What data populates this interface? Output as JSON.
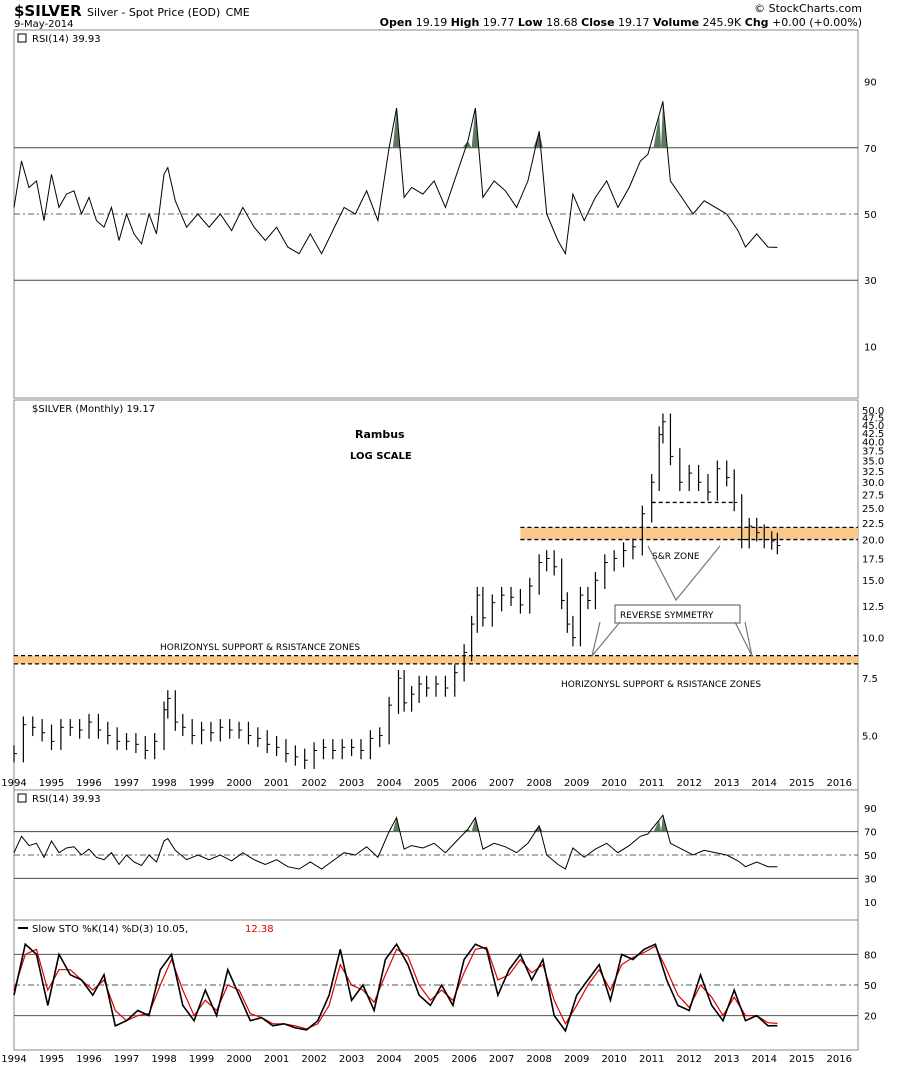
{
  "header": {
    "symbol": "$SILVER",
    "description": "Silver - Spot Price (EOD)",
    "exchange": "CME",
    "date": "9-May-2014",
    "brand": "© StockCharts.com",
    "open_label": "Open",
    "open": "19.19",
    "high_label": "High",
    "high": "19.77",
    "low_label": "Low",
    "low": "18.68",
    "close_label": "Close",
    "close": "19.17",
    "volume_label": "Volume",
    "volume": "245.9K",
    "chg_label": "Chg",
    "chg": "+0.00 (+0.00%)"
  },
  "colors": {
    "price": "#000000",
    "zone_fill": "#f9c98c",
    "rsi_fill": "#5d7a5d",
    "dslow": "#dd0000",
    "grid": "#555555"
  },
  "chart_data": [
    {
      "type": "line",
      "panel": "rsi_top",
      "title": "RSI(14) 39.93",
      "ylim": [
        0,
        100
      ],
      "yticks": [
        10,
        30,
        50,
        70,
        90
      ],
      "overbought": 70,
      "oversold": 30,
      "midline": 50,
      "series": [
        {
          "x": [
            1994.0,
            1994.2,
            1994.4,
            1994.6,
            1994.8,
            1995.0,
            1995.2,
            1995.4,
            1995.6,
            1995.8,
            1996.0,
            1996.2,
            1996.4,
            1996.6,
            1996.8,
            1997.0,
            1997.2,
            1997.4,
            1997.6,
            1997.8,
            1998.0,
            1998.1,
            1998.3,
            1998.6,
            1998.9,
            1999.2,
            1999.5,
            1999.8,
            2000.1,
            2000.4,
            2000.7,
            2001.0,
            2001.3,
            2001.6,
            2001.9,
            2002.2,
            2002.5,
            2002.8,
            2003.1,
            2003.4,
            2003.7,
            2004.0,
            2004.2,
            2004.4,
            2004.6,
            2004.9,
            2005.2,
            2005.5,
            2005.8,
            2006.1,
            2006.3,
            2006.5,
            2006.8,
            2007.1,
            2007.4,
            2007.7,
            2008.0,
            2008.2,
            2008.5,
            2008.7,
            2008.9,
            2009.2,
            2009.5,
            2009.8,
            2010.1,
            2010.4,
            2010.7,
            2010.9,
            2011.2,
            2011.3,
            2011.5,
            2011.8,
            2012.1,
            2012.4,
            2012.7,
            2013.0,
            2013.3,
            2013.5,
            2013.8,
            2014.1,
            2014.35
          ],
          "values": [
            52,
            66,
            58,
            60,
            48,
            62,
            52,
            56,
            57,
            50,
            55,
            48,
            46,
            52,
            42,
            50,
            44,
            41,
            50,
            44,
            62,
            64,
            54,
            46,
            50,
            46,
            50,
            45,
            52,
            46,
            42,
            46,
            40,
            38,
            44,
            38,
            45,
            52,
            50,
            57,
            48,
            70,
            82,
            55,
            58,
            56,
            60,
            52,
            62,
            72,
            82,
            55,
            60,
            57,
            52,
            60,
            75,
            50,
            42,
            38,
            56,
            48,
            55,
            60,
            52,
            58,
            66,
            68,
            80,
            84,
            60,
            55,
            50,
            54,
            52,
            50,
            45,
            40,
            44,
            40,
            39.93
          ]
        }
      ]
    },
    {
      "type": "bar",
      "panel": "price",
      "title": "$SILVER (Monthly) 19.17",
      "scale": "log",
      "ylim": [
        3.5,
        50
      ],
      "yticks": [
        5.0,
        7.5,
        10.0,
        12.5,
        15.0,
        17.5,
        20.0,
        22.5,
        25.0,
        27.5,
        30.0,
        32.5,
        35.0,
        37.5,
        40.0,
        42.5,
        45.0,
        47.5,
        50.0
      ],
      "xlim": [
        1994,
        2016.5
      ],
      "xticks": [
        "1994",
        "1995",
        "1996",
        "1997",
        "1998",
        "1999",
        "2000",
        "2001",
        "2002",
        "2003",
        "2004",
        "2005",
        "2006",
        "2007",
        "2008",
        "2009",
        "2010",
        "2011",
        "2012",
        "2013",
        "2014",
        "2015",
        "2016"
      ],
      "series": [
        {
          "x": [
            1994.0,
            1994.25,
            1994.5,
            1994.75,
            1995.0,
            1995.25,
            1995.5,
            1995.75,
            1996.0,
            1996.25,
            1996.5,
            1996.75,
            1997.0,
            1997.25,
            1997.5,
            1997.75,
            1998.0,
            1998.1,
            1998.3,
            1998.5,
            1998.75,
            1999.0,
            1999.25,
            1999.5,
            1999.75,
            2000.0,
            2000.25,
            2000.5,
            2000.75,
            2001.0,
            2001.25,
            2001.5,
            2001.75,
            2002.0,
            2002.25,
            2002.5,
            2002.75,
            2003.0,
            2003.25,
            2003.5,
            2003.75,
            2004.0,
            2004.25,
            2004.4,
            2004.6,
            2004.8,
            2005.0,
            2005.25,
            2005.5,
            2005.75,
            2006.0,
            2006.2,
            2006.35,
            2006.5,
            2006.75,
            2007.0,
            2007.25,
            2007.5,
            2007.75,
            2008.0,
            2008.2,
            2008.4,
            2008.6,
            2008.75,
            2008.9,
            2009.1,
            2009.3,
            2009.5,
            2009.75,
            2010.0,
            2010.25,
            2010.5,
            2010.75,
            2011.0,
            2011.2,
            2011.3,
            2011.5,
            2011.75,
            2012.0,
            2012.25,
            2012.5,
            2012.75,
            2013.0,
            2013.2,
            2013.4,
            2013.6,
            2013.8,
            2014.0,
            2014.2,
            2014.35
          ],
          "values": [
            4.4,
            5.4,
            5.3,
            5.1,
            4.8,
            5.3,
            5.3,
            5.2,
            5.5,
            5.2,
            5.0,
            4.8,
            4.8,
            4.7,
            4.5,
            4.8,
            6.0,
            6.5,
            5.5,
            5.3,
            5.0,
            5.2,
            5.1,
            5.3,
            5.2,
            5.2,
            5.0,
            4.9,
            4.7,
            4.6,
            4.4,
            4.3,
            4.2,
            4.5,
            4.6,
            4.5,
            4.6,
            4.6,
            4.5,
            4.9,
            5.0,
            6.2,
            7.5,
            6.3,
            6.7,
            7.2,
            7.0,
            7.2,
            7.0,
            7.8,
            9.0,
            11.0,
            13.5,
            11.5,
            12.8,
            13.5,
            13.3,
            12.6,
            14.4,
            17.0,
            17.5,
            16.5,
            13.0,
            11.0,
            10.0,
            13.5,
            13.0,
            15.0,
            17.0,
            17.5,
            18.5,
            19.0,
            24.0,
            30.0,
            42.0,
            46.0,
            36.0,
            30.0,
            32.0,
            30.0,
            28.0,
            33.0,
            31.0,
            26.0,
            20.0,
            22.0,
            21.0,
            20.0,
            19.8,
            19.17
          ]
        }
      ],
      "annotations": [
        "Rambus",
        "LOG SCALE",
        "S&R ZONE",
        "REVERSE SYMMETRY",
        "HORIZONYSL SUPPORT & RSISTANCE ZONES",
        "HORIZONYSL SUPPORT & RSISTANCE ZONES"
      ],
      "zones": [
        {
          "low": 20.0,
          "high": 21.8
        },
        {
          "low": 8.3,
          "high": 8.8
        }
      ],
      "dashed_levels": [
        26.0
      ]
    },
    {
      "type": "line",
      "panel": "rsi_mid",
      "title": "RSI(14) 39.93",
      "ylim": [
        0,
        100
      ],
      "yticks": [
        10,
        30,
        50,
        70,
        90
      ],
      "overbought": 70,
      "oversold": 30,
      "midline": 50,
      "series": [
        {
          "x": [
            1994.0,
            1994.2,
            1994.4,
            1994.6,
            1994.8,
            1995.0,
            1995.2,
            1995.4,
            1995.6,
            1995.8,
            1996.0,
            1996.2,
            1996.4,
            1996.6,
            1996.8,
            1997.0,
            1997.2,
            1997.4,
            1997.6,
            1997.8,
            1998.0,
            1998.1,
            1998.3,
            1998.6,
            1998.9,
            1999.2,
            1999.5,
            1999.8,
            2000.1,
            2000.4,
            2000.7,
            2001.0,
            2001.3,
            2001.6,
            2001.9,
            2002.2,
            2002.5,
            2002.8,
            2003.1,
            2003.4,
            2003.7,
            2004.0,
            2004.2,
            2004.4,
            2004.6,
            2004.9,
            2005.2,
            2005.5,
            2005.8,
            2006.1,
            2006.3,
            2006.5,
            2006.8,
            2007.1,
            2007.4,
            2007.7,
            2008.0,
            2008.2,
            2008.5,
            2008.7,
            2008.9,
            2009.2,
            2009.5,
            2009.8,
            2010.1,
            2010.4,
            2010.7,
            2010.9,
            2011.2,
            2011.3,
            2011.5,
            2011.8,
            2012.1,
            2012.4,
            2012.7,
            2013.0,
            2013.3,
            2013.5,
            2013.8,
            2014.1,
            2014.35
          ],
          "values": [
            52,
            66,
            58,
            60,
            48,
            62,
            52,
            56,
            57,
            50,
            55,
            48,
            46,
            52,
            42,
            50,
            44,
            41,
            50,
            44,
            62,
            64,
            54,
            46,
            50,
            46,
            50,
            45,
            52,
            46,
            42,
            46,
            40,
            38,
            44,
            38,
            45,
            52,
            50,
            57,
            48,
            70,
            82,
            55,
            58,
            56,
            60,
            52,
            62,
            72,
            82,
            55,
            60,
            57,
            52,
            60,
            75,
            50,
            42,
            38,
            56,
            48,
            55,
            60,
            52,
            58,
            66,
            68,
            80,
            84,
            60,
            55,
            50,
            54,
            52,
            50,
            45,
            40,
            44,
            40,
            39.93
          ]
        }
      ]
    },
    {
      "type": "line",
      "panel": "sto",
      "title": "Slow STO %K(14) %D(3) 10.05, 12.38",
      "title_k": "Slow STO %K(14) %D(3) 10.05,",
      "title_d": "12.38",
      "ylim": [
        0,
        100
      ],
      "yticks": [
        20,
        50,
        80
      ],
      "xticks": [
        "1994",
        "1995",
        "1996",
        "1997",
        "1998",
        "1999",
        "2000",
        "2001",
        "2002",
        "2003",
        "2004",
        "2005",
        "2006",
        "2007",
        "2008",
        "2009",
        "2010",
        "2011",
        "2012",
        "2013",
        "2014",
        "2015",
        "2016"
      ],
      "series": [
        {
          "name": "%K",
          "x": [
            1994.0,
            1994.3,
            1994.6,
            1994.9,
            1995.2,
            1995.5,
            1995.8,
            1996.1,
            1996.4,
            1996.7,
            1997.0,
            1997.3,
            1997.6,
            1997.9,
            1998.2,
            1998.5,
            1998.8,
            1999.1,
            1999.4,
            1999.7,
            2000.0,
            2000.3,
            2000.6,
            2000.9,
            2001.2,
            2001.5,
            2001.8,
            2002.1,
            2002.4,
            2002.7,
            2003.0,
            2003.3,
            2003.6,
            2003.9,
            2004.2,
            2004.5,
            2004.8,
            2005.1,
            2005.4,
            2005.7,
            2006.0,
            2006.3,
            2006.6,
            2006.9,
            2007.2,
            2007.5,
            2007.8,
            2008.1,
            2008.4,
            2008.7,
            2009.0,
            2009.3,
            2009.6,
            2009.9,
            2010.2,
            2010.5,
            2010.8,
            2011.1,
            2011.4,
            2011.7,
            2012.0,
            2012.3,
            2012.6,
            2012.9,
            2013.2,
            2013.5,
            2013.8,
            2014.1,
            2014.35
          ],
          "values": [
            40,
            90,
            80,
            30,
            80,
            60,
            55,
            40,
            60,
            10,
            15,
            25,
            20,
            65,
            80,
            30,
            15,
            45,
            20,
            65,
            40,
            15,
            18,
            10,
            12,
            8,
            6,
            15,
            40,
            85,
            35,
            50,
            25,
            75,
            90,
            70,
            40,
            30,
            50,
            30,
            75,
            90,
            85,
            40,
            65,
            80,
            55,
            75,
            20,
            5,
            40,
            55,
            70,
            35,
            80,
            75,
            85,
            90,
            55,
            30,
            25,
            60,
            30,
            15,
            45,
            15,
            20,
            10,
            10.05
          ]
        },
        {
          "name": "%D",
          "x": [
            1994.0,
            1994.3,
            1994.6,
            1994.9,
            1995.2,
            1995.5,
            1995.8,
            1996.1,
            1996.4,
            1996.7,
            1997.0,
            1997.3,
            1997.6,
            1997.9,
            1998.2,
            1998.5,
            1998.8,
            1999.1,
            1999.4,
            1999.7,
            2000.0,
            2000.3,
            2000.6,
            2000.9,
            2001.2,
            2001.5,
            2001.8,
            2002.1,
            2002.4,
            2002.7,
            2003.0,
            2003.3,
            2003.6,
            2003.9,
            2004.2,
            2004.5,
            2004.8,
            2005.1,
            2005.4,
            2005.7,
            2006.0,
            2006.3,
            2006.6,
            2006.9,
            2007.2,
            2007.5,
            2007.8,
            2008.1,
            2008.4,
            2008.7,
            2009.0,
            2009.3,
            2009.6,
            2009.9,
            2010.2,
            2010.5,
            2010.8,
            2011.1,
            2011.4,
            2011.7,
            2012.0,
            2012.3,
            2012.6,
            2012.9,
            2013.2,
            2013.5,
            2013.8,
            2014.1,
            2014.35
          ],
          "values": [
            45,
            80,
            85,
            45,
            65,
            65,
            55,
            45,
            55,
            25,
            15,
            20,
            22,
            50,
            75,
            45,
            20,
            35,
            25,
            50,
            45,
            22,
            18,
            12,
            12,
            10,
            7,
            12,
            30,
            70,
            50,
            45,
            33,
            60,
            85,
            78,
            50,
            35,
            45,
            35,
            62,
            85,
            87,
            55,
            60,
            75,
            62,
            70,
            35,
            12,
            30,
            50,
            65,
            45,
            70,
            77,
            82,
            88,
            65,
            40,
            28,
            50,
            38,
            20,
            38,
            20,
            20,
            13,
            12.38
          ]
        }
      ]
    }
  ]
}
